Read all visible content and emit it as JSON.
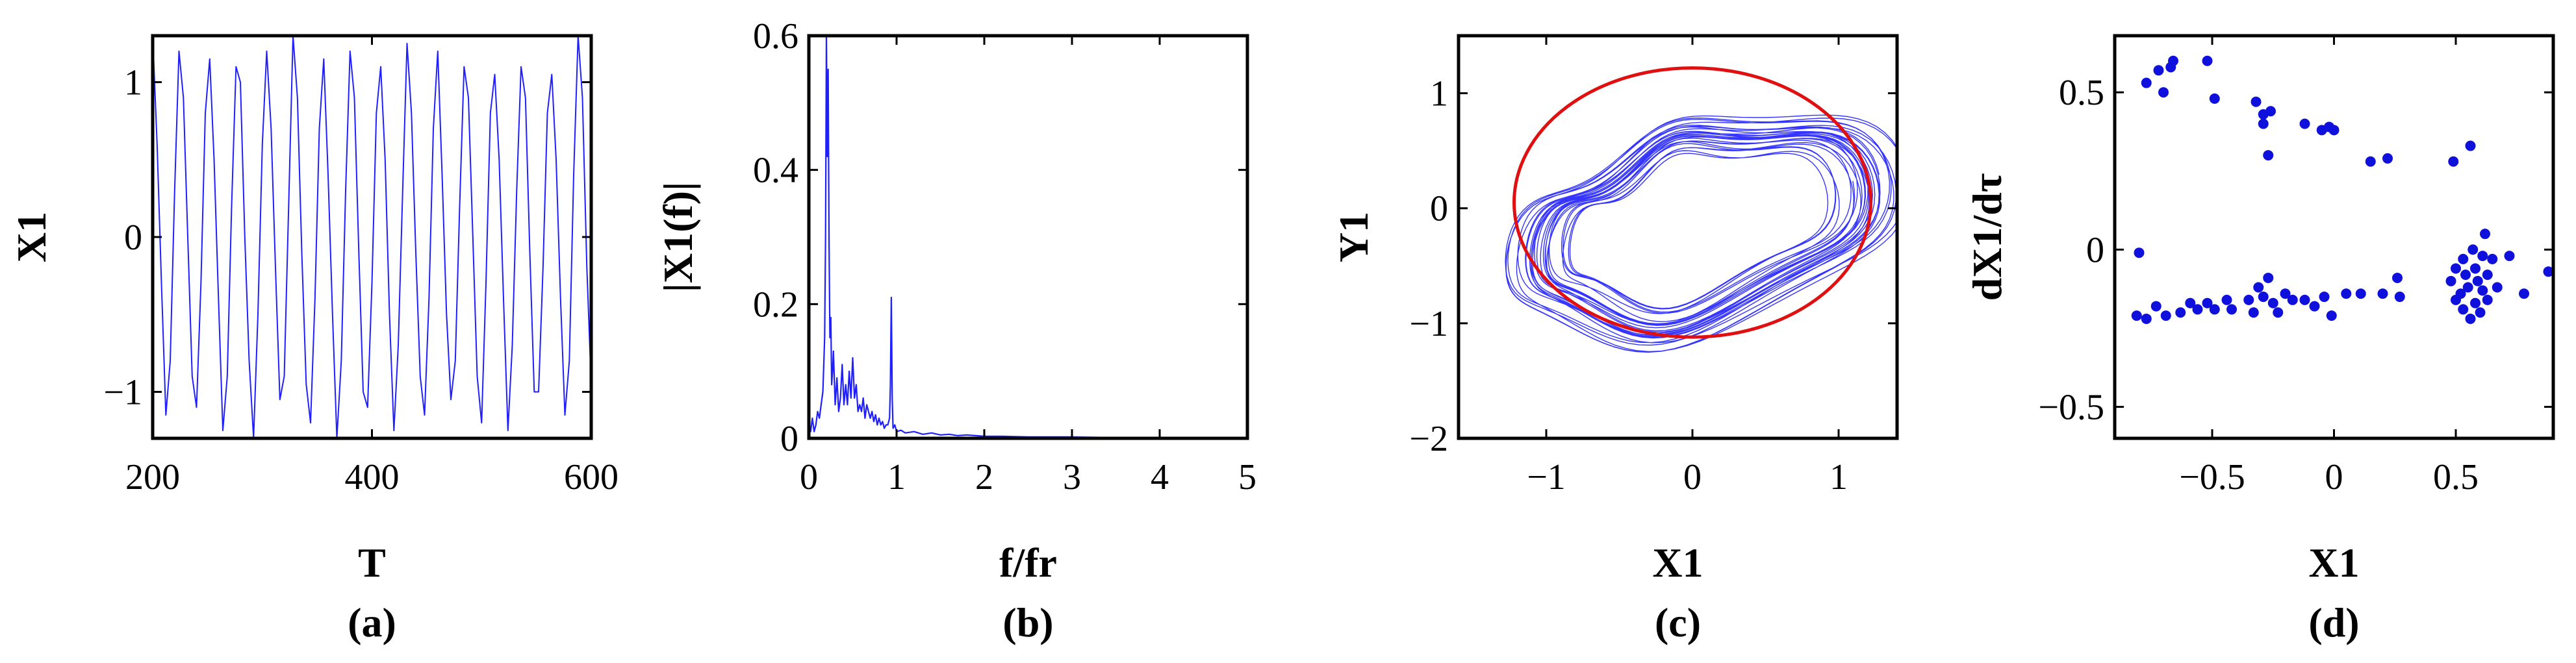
{
  "chart_data": [
    {
      "type": "line",
      "panel_label": "(a)",
      "xlabel": "T",
      "ylabel": "X1",
      "xlim": [
        200,
        600
      ],
      "ylim": [
        -1.3,
        1.3
      ],
      "xticks": [
        200,
        400,
        600
      ],
      "xtick_labels": [
        "200",
        "400",
        "600"
      ],
      "yticks": [
        -1,
        0,
        1
      ],
      "ytick_labels": [
        "−1",
        "0",
        "1"
      ],
      "line_color": "#1f1fff",
      "series": [
        {
          "x": [
            200,
            204,
            208,
            212,
            216,
            220,
            224,
            228,
            232,
            236,
            240,
            244,
            248,
            252,
            256,
            260,
            264,
            268,
            272,
            276,
            280,
            284,
            288,
            292,
            296,
            300,
            304,
            308,
            312,
            316,
            320,
            324,
            328,
            332,
            336,
            340,
            344,
            348,
            352,
            356,
            360,
            364,
            368,
            372,
            376,
            380,
            384,
            388,
            392,
            396,
            400,
            404,
            408,
            412,
            416,
            420,
            424,
            428,
            432,
            436,
            440,
            444,
            448,
            452,
            456,
            460,
            464,
            468,
            472,
            476,
            480,
            484,
            488,
            492,
            496,
            500,
            504,
            508,
            512,
            516,
            520,
            524,
            528,
            532,
            536,
            540,
            544,
            548,
            552,
            556,
            560,
            564,
            568,
            572,
            576,
            580,
            584,
            588,
            592,
            596,
            600
          ],
          "y": [
            1.3,
            0.6,
            -0.3,
            -1.15,
            -0.8,
            0.3,
            1.2,
            0.9,
            0.0,
            -0.9,
            -1.1,
            -0.3,
            0.8,
            1.15,
            0.5,
            -0.4,
            -1.25,
            -0.9,
            0.2,
            1.1,
            1.0,
            0.0,
            -0.8,
            -1.3,
            -0.5,
            0.6,
            1.2,
            0.7,
            -0.2,
            -1.05,
            -0.9,
            0.2,
            1.3,
            0.9,
            -0.1,
            -0.95,
            -1.2,
            -0.4,
            0.7,
            1.15,
            0.4,
            -0.5,
            -1.3,
            -0.8,
            0.3,
            1.2,
            0.9,
            -0.1,
            -1.0,
            -1.1,
            -0.3,
            0.8,
            1.1,
            0.5,
            -0.5,
            -1.25,
            -0.7,
            0.3,
            1.25,
            0.8,
            -0.1,
            -0.9,
            -1.15,
            -0.4,
            0.7,
            1.2,
            0.4,
            -0.5,
            -1.05,
            -0.8,
            0.2,
            1.1,
            0.9,
            0.0,
            -0.9,
            -1.2,
            -0.3,
            0.8,
            1.05,
            0.5,
            -0.4,
            -1.25,
            -0.7,
            0.3,
            1.1,
            0.9,
            -0.1,
            -1.0,
            -1.0,
            -0.2,
            0.8,
            1.05,
            0.5,
            -0.4,
            -1.15,
            -0.8,
            0.4,
            1.3,
            0.9,
            -0.2,
            -0.95
          ]
        }
      ]
    },
    {
      "type": "line",
      "panel_label": "(b)",
      "xlabel": "f/fr",
      "ylabel": "|X1(f)|",
      "xlim": [
        0,
        5
      ],
      "ylim": [
        0,
        0.6
      ],
      "xticks": [
        0,
        1,
        2,
        3,
        4,
        5
      ],
      "xtick_labels": [
        "0",
        "1",
        "2",
        "3",
        "4",
        "5"
      ],
      "yticks": [
        0,
        0.2,
        0.4,
        0.6
      ],
      "ytick_labels": [
        "0",
        "0.2",
        "0.4",
        "0.6"
      ],
      "line_color": "#1f1fff",
      "series": [
        {
          "x": [
            0.0,
            0.02,
            0.04,
            0.06,
            0.08,
            0.1,
            0.12,
            0.14,
            0.16,
            0.18,
            0.19,
            0.2,
            0.21,
            0.22,
            0.23,
            0.24,
            0.25,
            0.26,
            0.27,
            0.28,
            0.3,
            0.32,
            0.34,
            0.36,
            0.38,
            0.4,
            0.42,
            0.44,
            0.46,
            0.48,
            0.5,
            0.52,
            0.54,
            0.56,
            0.58,
            0.6,
            0.62,
            0.64,
            0.66,
            0.68,
            0.7,
            0.72,
            0.74,
            0.76,
            0.78,
            0.8,
            0.82,
            0.84,
            0.86,
            0.88,
            0.9,
            0.92,
            0.93,
            0.94,
            0.95,
            0.96,
            0.98,
            1.0,
            1.05,
            1.1,
            1.2,
            1.3,
            1.4,
            1.5,
            1.6,
            1.7,
            1.8,
            1.9,
            2.0,
            2.2,
            2.5,
            3.0,
            3.5,
            4.0,
            4.5,
            5.0
          ],
          "y": [
            0.02,
            0.01,
            0.03,
            0.01,
            0.02,
            0.04,
            0.03,
            0.05,
            0.07,
            0.15,
            0.3,
            0.6,
            0.42,
            0.55,
            0.3,
            0.15,
            0.18,
            0.08,
            0.1,
            0.13,
            0.05,
            0.09,
            0.04,
            0.06,
            0.11,
            0.05,
            0.08,
            0.05,
            0.1,
            0.06,
            0.12,
            0.06,
            0.08,
            0.04,
            0.05,
            0.04,
            0.06,
            0.03,
            0.05,
            0.04,
            0.03,
            0.04,
            0.025,
            0.035,
            0.02,
            0.03,
            0.02,
            0.025,
            0.015,
            0.02,
            0.02,
            0.03,
            0.08,
            0.21,
            0.06,
            0.015,
            0.02,
            0.01,
            0.012,
            0.008,
            0.01,
            0.006,
            0.008,
            0.005,
            0.006,
            0.004,
            0.005,
            0.004,
            0.003,
            0.003,
            0.002,
            0.002,
            0.001,
            0.001,
            0.001,
            0.001
          ]
        }
      ]
    },
    {
      "type": "line",
      "panel_label": "(c)",
      "xlabel": "X1",
      "ylabel": "Y1",
      "xlim": [
        -1.6,
        1.4
      ],
      "ylim": [
        -2,
        1.5
      ],
      "xticks": [
        -1,
        0,
        1
      ],
      "xtick_labels": [
        "−1",
        "0",
        "1"
      ],
      "yticks": [
        -2,
        -1,
        0,
        1
      ],
      "ytick_labels": [
        "−2",
        "−1",
        "0",
        "1"
      ],
      "trajectory_color": "#1f1fff",
      "circle_color": "#e01010",
      "circle": {
        "center": [
          0,
          0.05
        ],
        "rx": 1.22,
        "ry": 1.17
      }
    },
    {
      "type": "scatter",
      "panel_label": "(d)",
      "xlabel": "X1",
      "ylabel": "dX1/dτ",
      "xlim": [
        -0.9,
        0.9
      ],
      "ylim": [
        -0.6,
        0.68
      ],
      "xticks": [
        -0.5,
        0,
        0.5
      ],
      "xtick_labels": [
        "−0.5",
        "0",
        "0.5"
      ],
      "yticks": [
        -0.5,
        0,
        0.5
      ],
      "ytick_labels": [
        "−0.5",
        "0",
        "0.5"
      ],
      "marker_color": "#1010dd",
      "points": [
        [
          -0.77,
          0.53
        ],
        [
          -0.72,
          0.57
        ],
        [
          -0.7,
          0.5
        ],
        [
          -0.67,
          0.58
        ],
        [
          -0.66,
          0.6
        ],
        [
          -0.52,
          0.6
        ],
        [
          -0.49,
          0.48
        ],
        [
          -0.32,
          0.47
        ],
        [
          -0.29,
          0.43
        ],
        [
          -0.26,
          0.44
        ],
        [
          -0.29,
          0.4
        ],
        [
          -0.27,
          0.3
        ],
        [
          -0.12,
          0.4
        ],
        [
          -0.05,
          0.38
        ],
        [
          -0.02,
          0.39
        ],
        [
          0.0,
          0.38
        ],
        [
          0.15,
          0.28
        ],
        [
          0.22,
          0.29
        ],
        [
          0.49,
          0.28
        ],
        [
          0.56,
          0.33
        ],
        [
          -0.8,
          -0.01
        ],
        [
          -0.81,
          -0.21
        ],
        [
          -0.77,
          -0.22
        ],
        [
          -0.73,
          -0.18
        ],
        [
          -0.69,
          -0.21
        ],
        [
          -0.63,
          -0.2
        ],
        [
          -0.59,
          -0.17
        ],
        [
          -0.56,
          -0.19
        ],
        [
          -0.52,
          -0.17
        ],
        [
          -0.49,
          -0.19
        ],
        [
          -0.44,
          -0.16
        ],
        [
          -0.42,
          -0.19
        ],
        [
          -0.35,
          -0.16
        ],
        [
          -0.33,
          -0.2
        ],
        [
          -0.31,
          -0.12
        ],
        [
          -0.29,
          -0.15
        ],
        [
          -0.27,
          -0.09
        ],
        [
          -0.25,
          -0.17
        ],
        [
          -0.23,
          -0.2
        ],
        [
          -0.2,
          -0.14
        ],
        [
          -0.17,
          -0.16
        ],
        [
          -0.12,
          -0.16
        ],
        [
          -0.08,
          -0.18
        ],
        [
          -0.04,
          -0.15
        ],
        [
          -0.01,
          -0.21
        ],
        [
          0.05,
          -0.14
        ],
        [
          0.11,
          -0.14
        ],
        [
          0.2,
          -0.14
        ],
        [
          0.26,
          -0.09
        ],
        [
          0.27,
          -0.15
        ],
        [
          0.48,
          -0.1
        ],
        [
          0.5,
          -0.06
        ],
        [
          0.5,
          -0.16
        ],
        [
          0.52,
          -0.14
        ],
        [
          0.53,
          -0.03
        ],
        [
          0.53,
          -0.19
        ],
        [
          0.54,
          -0.08
        ],
        [
          0.55,
          -0.12
        ],
        [
          0.56,
          -0.22
        ],
        [
          0.57,
          0.0
        ],
        [
          0.58,
          -0.06
        ],
        [
          0.58,
          -0.17
        ],
        [
          0.59,
          -0.1
        ],
        [
          0.6,
          -0.2
        ],
        [
          0.61,
          -0.02
        ],
        [
          0.61,
          -0.13
        ],
        [
          0.62,
          0.05
        ],
        [
          0.63,
          -0.08
        ],
        [
          0.63,
          -0.16
        ],
        [
          0.65,
          -0.03
        ],
        [
          0.67,
          -0.12
        ],
        [
          0.72,
          -0.02
        ],
        [
          0.78,
          -0.14
        ],
        [
          0.88,
          -0.07
        ]
      ]
    }
  ]
}
